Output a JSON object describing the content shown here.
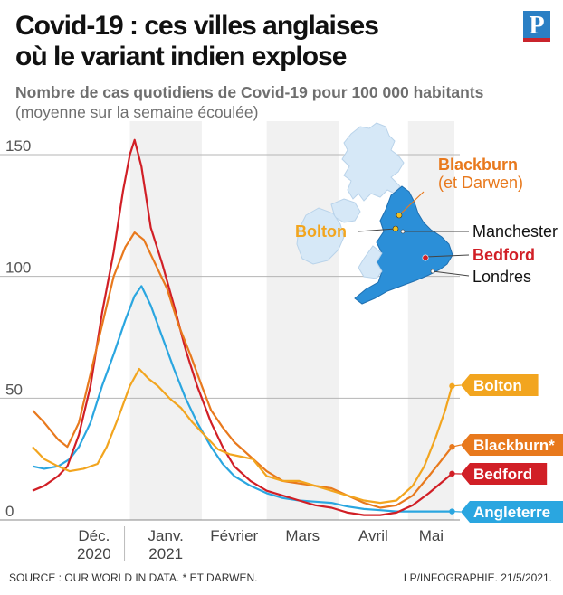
{
  "header": {
    "title_line1": "Covid-19 : ces villes anglaises",
    "title_line2": "où le variant indien explose",
    "subtitle": "Nombre de cas quotidiens de Covid-19 pour 100 000 habitants",
    "subtitle2": "(moyenne sur la semaine écoulée)",
    "logo": "P"
  },
  "footer": {
    "source": "SOURCE : OUR WORLD IN DATA.   * ET DARWEN.",
    "credit": "LP/INFOGRAPHIE.  21/5/2021."
  },
  "map": {
    "labels": {
      "blackburn": "Blackburn",
      "blackburn_sub": "(et Darwen)",
      "bolton": "Bolton",
      "manchester": "Manchester",
      "bedford": "Bedford",
      "londres": "Londres"
    }
  },
  "colors": {
    "bolton": "#f2a51f",
    "blackburn": "#e8791d",
    "bedford": "#d11f26",
    "angleterre": "#2aa6e0",
    "england_map": "#2b8fd8",
    "uk_other_map": "#d6e8f7"
  },
  "chart_data": {
    "type": "line",
    "ylim": [
      0,
      160
    ],
    "yticks": [
      0,
      50,
      100,
      150
    ],
    "x_range": [
      "2020-11-20",
      "2021-05-21"
    ],
    "month_bands": [
      {
        "start": "2020-12-01",
        "end": "2021-01-01",
        "shaded": false,
        "label": [
          "Déc.",
          "2020"
        ]
      },
      {
        "start": "2021-01-01",
        "end": "2021-02-01",
        "shaded": true,
        "label": [
          "Janv.",
          "2021"
        ]
      },
      {
        "start": "2021-02-01",
        "end": "2021-03-01",
        "shaded": false,
        "label": [
          "Février"
        ]
      },
      {
        "start": "2021-03-01",
        "end": "2021-04-01",
        "shaded": true,
        "label": [
          "Mars"
        ]
      },
      {
        "start": "2021-04-01",
        "end": "2021-05-01",
        "shaded": false,
        "label": [
          "Avril"
        ]
      },
      {
        "start": "2021-05-01",
        "end": "2021-05-21",
        "shaded": true,
        "label": [
          "Mai"
        ]
      }
    ],
    "series": [
      {
        "name": "Angleterre",
        "color_key": "angleterre",
        "end_label": "Angleterre",
        "points": [
          [
            "2020-11-20",
            22
          ],
          [
            "2020-11-25",
            21
          ],
          [
            "2020-12-01",
            22
          ],
          [
            "2020-12-06",
            25
          ],
          [
            "2020-12-10",
            30
          ],
          [
            "2020-12-15",
            40
          ],
          [
            "2020-12-20",
            55
          ],
          [
            "2020-12-25",
            68
          ],
          [
            "2020-12-30",
            82
          ],
          [
            "2021-01-03",
            92
          ],
          [
            "2021-01-06",
            96
          ],
          [
            "2021-01-10",
            88
          ],
          [
            "2021-01-15",
            75
          ],
          [
            "2021-01-20",
            62
          ],
          [
            "2021-01-25",
            50
          ],
          [
            "2021-01-30",
            40
          ],
          [
            "2021-02-05",
            30
          ],
          [
            "2021-02-10",
            23
          ],
          [
            "2021-02-15",
            18
          ],
          [
            "2021-02-22",
            14
          ],
          [
            "2021-03-01",
            11
          ],
          [
            "2021-03-08",
            9
          ],
          [
            "2021-03-15",
            8
          ],
          [
            "2021-03-22",
            7.5
          ],
          [
            "2021-03-29",
            7
          ],
          [
            "2021-04-05",
            5.5
          ],
          [
            "2021-04-12",
            4.5
          ],
          [
            "2021-04-19",
            4
          ],
          [
            "2021-04-26",
            3.5
          ],
          [
            "2021-05-05",
            3.5
          ],
          [
            "2021-05-12",
            3.5
          ],
          [
            "2021-05-20",
            3.5
          ]
        ]
      },
      {
        "name": "Bedford",
        "color_key": "bedford",
        "end_label": "Bedford",
        "points": [
          [
            "2020-11-20",
            12
          ],
          [
            "2020-11-25",
            14
          ],
          [
            "2020-12-01",
            18
          ],
          [
            "2020-12-05",
            22
          ],
          [
            "2020-12-10",
            35
          ],
          [
            "2020-12-15",
            55
          ],
          [
            "2020-12-20",
            85
          ],
          [
            "2020-12-25",
            110
          ],
          [
            "2020-12-29",
            135
          ],
          [
            "2021-01-01",
            150
          ],
          [
            "2021-01-03",
            156
          ],
          [
            "2021-01-06",
            145
          ],
          [
            "2021-01-10",
            120
          ],
          [
            "2021-01-15",
            105
          ],
          [
            "2021-01-20",
            88
          ],
          [
            "2021-01-25",
            70
          ],
          [
            "2021-01-30",
            55
          ],
          [
            "2021-02-05",
            40
          ],
          [
            "2021-02-10",
            30
          ],
          [
            "2021-02-15",
            22
          ],
          [
            "2021-02-22",
            16
          ],
          [
            "2021-03-01",
            12
          ],
          [
            "2021-03-08",
            10
          ],
          [
            "2021-03-15",
            8
          ],
          [
            "2021-03-22",
            6
          ],
          [
            "2021-03-29",
            5
          ],
          [
            "2021-04-05",
            3
          ],
          [
            "2021-04-12",
            2
          ],
          [
            "2021-04-19",
            2
          ],
          [
            "2021-04-26",
            3
          ],
          [
            "2021-05-03",
            6
          ],
          [
            "2021-05-10",
            11
          ],
          [
            "2021-05-15",
            15
          ],
          [
            "2021-05-20",
            19
          ]
        ]
      },
      {
        "name": "Blackburn*",
        "color_key": "blackburn",
        "end_label": "Blackburn*",
        "points": [
          [
            "2020-11-20",
            45
          ],
          [
            "2020-11-25",
            40
          ],
          [
            "2020-12-01",
            33
          ],
          [
            "2020-12-05",
            30
          ],
          [
            "2020-12-10",
            40
          ],
          [
            "2020-12-15",
            60
          ],
          [
            "2020-12-20",
            80
          ],
          [
            "2020-12-25",
            100
          ],
          [
            "2020-12-30",
            112
          ],
          [
            "2021-01-03",
            118
          ],
          [
            "2021-01-07",
            115
          ],
          [
            "2021-01-12",
            105
          ],
          [
            "2021-01-17",
            95
          ],
          [
            "2021-01-22",
            80
          ],
          [
            "2021-01-27",
            68
          ],
          [
            "2021-02-01",
            55
          ],
          [
            "2021-02-05",
            45
          ],
          [
            "2021-02-10",
            38
          ],
          [
            "2021-02-15",
            32
          ],
          [
            "2021-02-22",
            26
          ],
          [
            "2021-03-01",
            20
          ],
          [
            "2021-03-08",
            16
          ],
          [
            "2021-03-15",
            15
          ],
          [
            "2021-03-22",
            14
          ],
          [
            "2021-03-29",
            13
          ],
          [
            "2021-04-05",
            10
          ],
          [
            "2021-04-12",
            7
          ],
          [
            "2021-04-19",
            5
          ],
          [
            "2021-04-26",
            6
          ],
          [
            "2021-05-03",
            10
          ],
          [
            "2021-05-10",
            18
          ],
          [
            "2021-05-15",
            24
          ],
          [
            "2021-05-20",
            30
          ]
        ]
      },
      {
        "name": "Bolton",
        "color_key": "bolton",
        "end_label": "Bolton",
        "points": [
          [
            "2020-11-20",
            30
          ],
          [
            "2020-11-25",
            25
          ],
          [
            "2020-12-01",
            22
          ],
          [
            "2020-12-06",
            20
          ],
          [
            "2020-12-12",
            21
          ],
          [
            "2020-12-18",
            23
          ],
          [
            "2020-12-22",
            30
          ],
          [
            "2020-12-27",
            42
          ],
          [
            "2021-01-01",
            55
          ],
          [
            "2021-01-05",
            62
          ],
          [
            "2021-01-09",
            58
          ],
          [
            "2021-01-13",
            55
          ],
          [
            "2021-01-18",
            50
          ],
          [
            "2021-01-23",
            46
          ],
          [
            "2021-01-28",
            40
          ],
          [
            "2021-02-03",
            34
          ],
          [
            "2021-02-08",
            29
          ],
          [
            "2021-02-13",
            27
          ],
          [
            "2021-02-18",
            26
          ],
          [
            "2021-02-23",
            25
          ],
          [
            "2021-03-01",
            18
          ],
          [
            "2021-03-08",
            16
          ],
          [
            "2021-03-15",
            16
          ],
          [
            "2021-03-22",
            14
          ],
          [
            "2021-03-29",
            12
          ],
          [
            "2021-04-05",
            10
          ],
          [
            "2021-04-12",
            8
          ],
          [
            "2021-04-19",
            7
          ],
          [
            "2021-04-26",
            8
          ],
          [
            "2021-05-03",
            14
          ],
          [
            "2021-05-08",
            22
          ],
          [
            "2021-05-13",
            34
          ],
          [
            "2021-05-17",
            45
          ],
          [
            "2021-05-20",
            55
          ]
        ]
      }
    ]
  }
}
